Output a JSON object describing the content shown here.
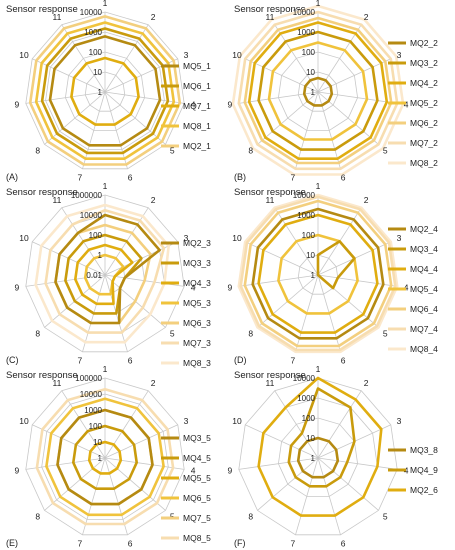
{
  "chart_data": [
    {
      "type": "radar",
      "panel_label": "(A)",
      "title": "Sensor response",
      "scale": "log",
      "rings": [
        "1",
        "10",
        "100",
        "1000",
        "10000"
      ],
      "axes": [
        "1",
        "2",
        "3",
        "4",
        "5",
        "6",
        "7",
        "8",
        "9",
        "10",
        "11"
      ],
      "series": [
        {
          "name": "MQ5_1",
          "values": [
            600,
            600,
            600,
            600,
            600,
            600,
            600,
            600,
            600,
            600,
            600
          ]
        },
        {
          "name": "MQ6_1",
          "values": [
            1500,
            1500,
            1500,
            1500,
            1500,
            1500,
            1500,
            1500,
            1500,
            1500,
            1500
          ]
        },
        {
          "name": "MQ7_1",
          "values": [
            50,
            50,
            50,
            50,
            50,
            50,
            50,
            50,
            50,
            50,
            50
          ]
        },
        {
          "name": "MQ8_1",
          "values": [
            3000,
            3000,
            3000,
            3000,
            3000,
            3000,
            3000,
            3000,
            3000,
            3000,
            3000
          ]
        },
        {
          "name": "MQ2_1",
          "values": [
            6000,
            6000,
            6000,
            6000,
            6000,
            6000,
            6000,
            6000,
            6000,
            6000,
            6000
          ]
        }
      ]
    },
    {
      "type": "radar",
      "panel_label": "(B)",
      "title": "Sensor response",
      "scale": "log",
      "rings": [
        "1",
        "10",
        "100",
        "1000",
        "10000"
      ],
      "axes": [
        "1",
        "2",
        "3",
        "4",
        "5",
        "6",
        "7",
        "8",
        "9",
        "10",
        "11"
      ],
      "series": [
        {
          "name": "MQ2_2",
          "values": [
            5,
            5,
            5,
            5,
            5,
            5,
            5,
            5,
            5,
            5,
            5
          ]
        },
        {
          "name": "MQ3_2",
          "values": [
            1000,
            1000,
            1000,
            1000,
            1000,
            1000,
            1000,
            1000,
            1000,
            1000,
            1000
          ]
        },
        {
          "name": "MQ4_2",
          "values": [
            3000,
            3000,
            3000,
            3000,
            3000,
            3000,
            3000,
            3000,
            3000,
            3000,
            3000
          ]
        },
        {
          "name": "MQ5_2",
          "values": [
            300,
            300,
            300,
            300,
            300,
            300,
            300,
            300,
            300,
            300,
            300
          ]
        },
        {
          "name": "MQ6_2",
          "values": [
            5000,
            5000,
            5000,
            5000,
            5000,
            5000,
            5000,
            5000,
            5000,
            5000,
            5000
          ]
        },
        {
          "name": "MQ7_2",
          "values": [
            10000,
            10000,
            10000,
            10000,
            10000,
            10000,
            10000,
            10000,
            10000,
            10000,
            10000
          ]
        },
        {
          "name": "MQ8_2",
          "values": [
            20000,
            20000,
            20000,
            20000,
            20000,
            20000,
            20000,
            20000,
            20000,
            20000,
            20000
          ]
        }
      ]
    },
    {
      "type": "radar",
      "panel_label": "(C)",
      "title": "Sensor response",
      "scale": "log",
      "rings": [
        "0.01",
        "1",
        "100",
        "10000",
        "1000000"
      ],
      "axes": [
        "1",
        "2",
        "3",
        "4",
        "5",
        "6",
        "7",
        "8",
        "9",
        "10",
        "11"
      ],
      "series": [
        {
          "name": "MQ2_3",
          "values": [
            10000,
            10000,
            10000,
            1,
            1,
            1000,
            1000,
            1000,
            1000,
            1000,
            1000
          ]
        },
        {
          "name": "MQ3_3",
          "values": [
            100,
            100,
            100,
            1,
            1,
            100,
            100,
            100,
            100,
            100,
            100
          ]
        },
        {
          "name": "MQ4_3",
          "values": [
            10,
            10,
            10,
            0.1,
            0.1,
            10,
            10,
            10,
            10,
            10,
            10
          ]
        },
        {
          "name": "MQ5_3",
          "values": [
            1,
            1,
            1,
            0.1,
            0.1,
            1,
            1,
            1,
            1,
            1,
            1
          ]
        },
        {
          "name": "MQ6_3",
          "values": [
            1000,
            1000,
            1000,
            100,
            100,
            1000,
            1000,
            1000,
            1000,
            1000,
            1000
          ]
        },
        {
          "name": "MQ7_3",
          "values": [
            30000,
            30000,
            30000,
            1000,
            1000,
            10000,
            10000,
            10000,
            10000,
            10000,
            10000
          ]
        },
        {
          "name": "MQ8_3",
          "values": [
            100000,
            100000,
            100000,
            10000,
            10000,
            100000,
            100000,
            100000,
            100000,
            100000,
            100000
          ]
        }
      ]
    },
    {
      "type": "radar",
      "panel_label": "(D)",
      "title": "Sensor response",
      "scale": "log",
      "rings": [
        "1",
        "10",
        "100",
        "1000",
        "10000"
      ],
      "axes": [
        "1",
        "2",
        "3",
        "4",
        "5",
        "6",
        "7",
        "8",
        "9",
        "10",
        "11"
      ],
      "series": [
        {
          "name": "MQ2_4",
          "values": [
            2000,
            2000,
            2000,
            2000,
            2000,
            2000,
            2000,
            2000,
            2000,
            2000,
            2000
          ]
        },
        {
          "name": "MQ3_4",
          "values": [
            10,
            100,
            100,
            10,
            10,
            1,
            1,
            1,
            1,
            1,
            1
          ]
        },
        {
          "name": "MQ4_4",
          "values": [
            1000,
            1000,
            1000,
            1000,
            1000,
            1000,
            1000,
            1000,
            1000,
            1000,
            1000
          ]
        },
        {
          "name": "MQ5_4",
          "values": [
            100,
            100,
            100,
            100,
            100,
            100,
            100,
            100,
            100,
            100,
            100
          ]
        },
        {
          "name": "MQ6_4",
          "values": [
            5000,
            5000,
            5000,
            5000,
            5000,
            5000,
            5000,
            5000,
            5000,
            5000,
            5000
          ]
        },
        {
          "name": "MQ7_4",
          "values": [
            8000,
            8000,
            8000,
            8000,
            8000,
            8000,
            8000,
            8000,
            8000,
            8000,
            8000
          ]
        },
        {
          "name": "MQ8_4",
          "values": [
            10000,
            10000,
            10000,
            10000,
            10000,
            10000,
            10000,
            10000,
            10000,
            10000,
            10000
          ]
        }
      ]
    },
    {
      "type": "radar",
      "panel_label": "(E)",
      "title": "Sensor response",
      "scale": "log",
      "rings": [
        "1",
        "10",
        "100",
        "1000",
        "10000",
        "100000"
      ],
      "axes": [
        "1",
        "2",
        "3",
        "4",
        "5",
        "6",
        "7",
        "8",
        "9",
        "10",
        "11"
      ],
      "series": [
        {
          "name": "MQ3_5",
          "values": [
            1000,
            1000,
            1000,
            1000,
            1000,
            1000,
            1000,
            1000,
            1000,
            1000,
            1000
          ]
        },
        {
          "name": "MQ4_5",
          "values": [
            100,
            100,
            100,
            100,
            100,
            100,
            100,
            100,
            100,
            100,
            100
          ]
        },
        {
          "name": "MQ5_5",
          "values": [
            10,
            10,
            10,
            10,
            10,
            10,
            10,
            10,
            10,
            10,
            10
          ]
        },
        {
          "name": "MQ6_5",
          "values": [
            5000,
            5000,
            5000,
            5000,
            5000,
            5000,
            5000,
            5000,
            5000,
            5000,
            5000
          ]
        },
        {
          "name": "MQ7_5",
          "values": [
            1000,
            1000,
            1000,
            1000,
            1000,
            1000,
            1000,
            1000,
            1000,
            1000,
            1000
          ]
        },
        {
          "name": "MQ8_5",
          "values": [
            20000,
            20000,
            20000,
            20000,
            20000,
            20000,
            20000,
            20000,
            20000,
            20000,
            20000
          ]
        }
      ]
    },
    {
      "type": "radar",
      "panel_label": "(F)",
      "title": "Sensor response",
      "scale": "log",
      "rings": [
        "1",
        "10",
        "100",
        "1000",
        "10000"
      ],
      "axes": [
        "1",
        "2",
        "3",
        "4",
        "5",
        "6",
        "7",
        "8",
        "9",
        "10",
        "11"
      ],
      "series": [
        {
          "name": "MQ3_8",
          "values": [
            10,
            10,
            10,
            10,
            10,
            10,
            10,
            10,
            10,
            10,
            10
          ]
        },
        {
          "name": "MQ4_9",
          "values": [
            3000,
            1000,
            100,
            30,
            30,
            30,
            30,
            30,
            30,
            30,
            30
          ]
        },
        {
          "name": "MQ2_6",
          "values": [
            10000,
            3000,
            3000,
            1000,
            1000,
            1000,
            1000,
            1000,
            1000,
            1000,
            1000
          ]
        }
      ]
    }
  ],
  "style": {
    "grid_color": "#c8c8c8",
    "series_colors": [
      "#b58a12",
      "#c99b0c",
      "#e0ad10",
      "#f0c33c",
      "#f3cf7e",
      "#f7ddb0",
      "#fbe8cc"
    ]
  }
}
